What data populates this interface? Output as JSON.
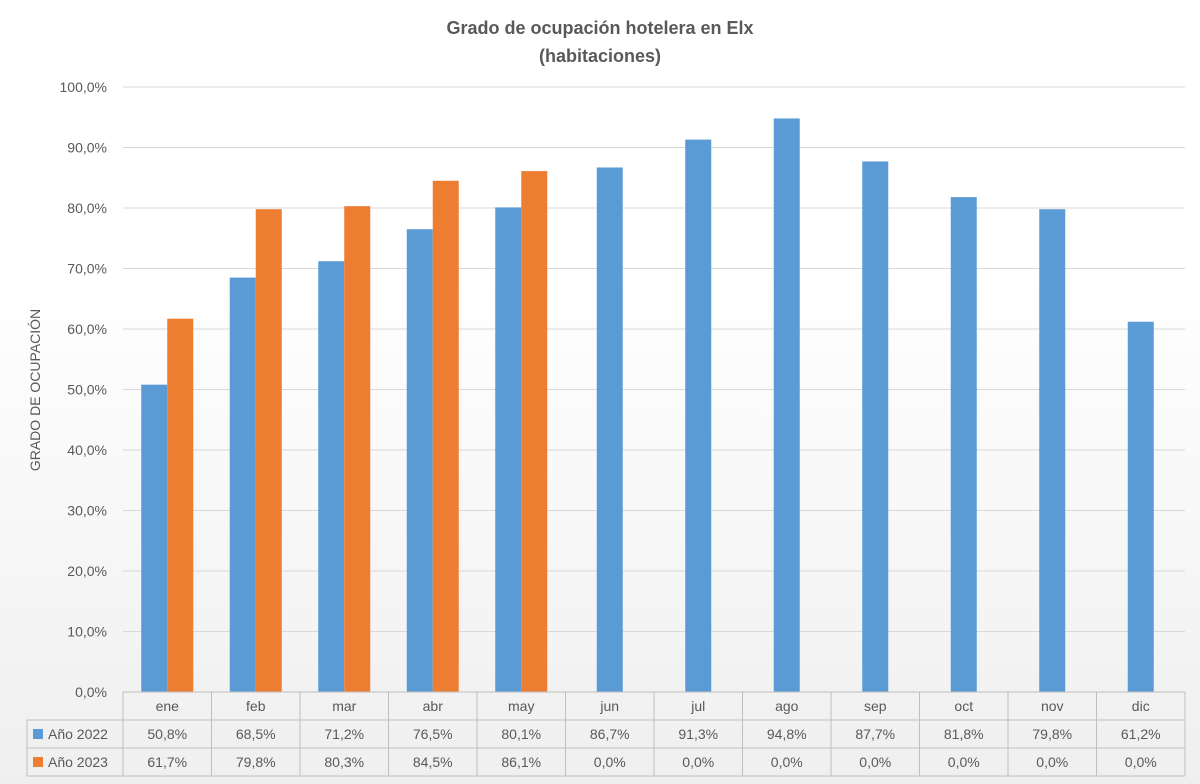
{
  "chart_data": {
    "type": "bar",
    "title": "Grado de ocupación hotelera en Elx",
    "subtitle": "(habitaciones)",
    "xlabel": "",
    "ylabel": "GRADO DE OCUPACIÓN",
    "ylim": [
      0,
      100
    ],
    "yticks": [
      "0,0%",
      "10,0%",
      "20,0%",
      "30,0%",
      "40,0%",
      "50,0%",
      "60,0%",
      "70,0%",
      "80,0%",
      "90,0%",
      "100,0%"
    ],
    "categories": [
      "ene",
      "feb",
      "mar",
      "abr",
      "may",
      "jun",
      "jul",
      "ago",
      "sep",
      "oct",
      "nov",
      "dic"
    ],
    "series": [
      {
        "name": "Año 2022",
        "color": "#5B9BD5",
        "values": [
          50.8,
          68.5,
          71.2,
          76.5,
          80.1,
          86.7,
          91.3,
          94.8,
          87.7,
          81.8,
          79.8,
          61.2
        ],
        "labels": [
          "50,8%",
          "68,5%",
          "71,2%",
          "76,5%",
          "80,1%",
          "86,7%",
          "91,3%",
          "94,8%",
          "87,7%",
          "81,8%",
          "79,8%",
          "61,2%"
        ]
      },
      {
        "name": "Año 2023",
        "color": "#ED7D31",
        "values": [
          61.7,
          79.8,
          80.3,
          84.5,
          86.1,
          0,
          0,
          0,
          0,
          0,
          0,
          0
        ],
        "labels": [
          "61,7%",
          "79,8%",
          "80,3%",
          "84,5%",
          "86,1%",
          "0,0%",
          "0,0%",
          "0,0%",
          "0,0%",
          "0,0%",
          "0,0%",
          "0,0%"
        ]
      }
    ],
    "grid": true,
    "legend": "data-table-bottom"
  }
}
